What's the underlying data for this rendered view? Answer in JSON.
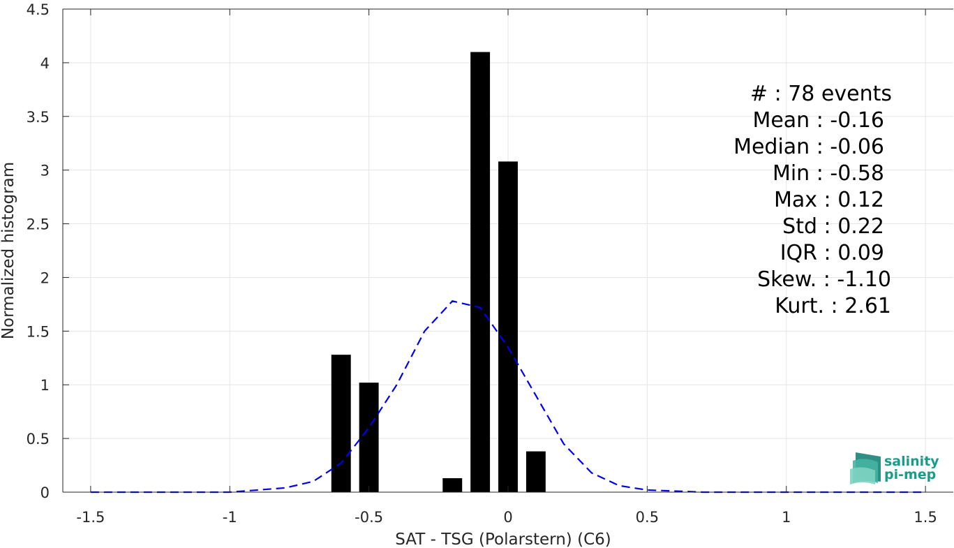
{
  "chart_data": {
    "type": "bar",
    "xlabel": "SAT - TSG (Polarstern) (C6)",
    "ylabel": "Normalized histogram",
    "xlim": [
      -1.6,
      1.6
    ],
    "ylim": [
      0,
      4.5
    ],
    "xticks": [
      -1.5,
      -1,
      -0.5,
      0,
      0.5,
      1,
      1.5
    ],
    "xtick_labels": [
      "-1.5",
      "-1",
      "-0.5",
      "0",
      "0.5",
      "1",
      "1.5"
    ],
    "yticks": [
      0,
      0.5,
      1,
      1.5,
      2,
      2.5,
      3,
      3.5,
      4,
      4.5
    ],
    "ytick_labels": [
      "0",
      "0.5",
      "1",
      "1.5",
      "2",
      "2.5",
      "3",
      "3.5",
      "4",
      "4.5"
    ],
    "grid": true,
    "bin_width": 0.1,
    "bars": {
      "x": [
        -0.6,
        -0.5,
        -0.4,
        -0.3,
        -0.2,
        -0.1,
        0.0,
        0.1
      ],
      "values": [
        1.28,
        1.02,
        0,
        0,
        0.13,
        4.1,
        3.08,
        0.38
      ],
      "color": "#000000"
    },
    "fit_curve": {
      "style": "dashed",
      "color": "#0000ee",
      "x": [
        -1.5,
        -1.4,
        -1.3,
        -1.2,
        -1.1,
        -1.0,
        -0.9,
        -0.8,
        -0.7,
        -0.6,
        -0.5,
        -0.4,
        -0.3,
        -0.2,
        -0.1,
        0.0,
        0.1,
        0.2,
        0.3,
        0.4,
        0.5,
        0.6,
        0.7,
        0.8,
        0.9,
        1.0,
        1.1,
        1.2,
        1.3,
        1.4,
        1.5
      ],
      "y": [
        0.0,
        0.0,
        0.0,
        0.0,
        0.0,
        0.0,
        0.02,
        0.04,
        0.1,
        0.27,
        0.6,
        1.0,
        1.5,
        1.78,
        1.72,
        1.35,
        0.9,
        0.45,
        0.18,
        0.06,
        0.02,
        0.01,
        0.0,
        0.0,
        0.0,
        0.0,
        0.0,
        0.0,
        0.0,
        0.0,
        0.0
      ]
    },
    "annotations": {
      "count": "#  : 78 events",
      "mean": "Mean : -0.16",
      "median": "Median : -0.06",
      "min": "Min : -0.58",
      "max": "Max : 0.12",
      "std": "Std : 0.22",
      "iqr": "IQR : 0.09",
      "skew": "Skew. : -1.10",
      "kurt": "Kurt. : 2.61"
    }
  },
  "logo": {
    "line1": "salinity",
    "line2": "pi-mep"
  }
}
